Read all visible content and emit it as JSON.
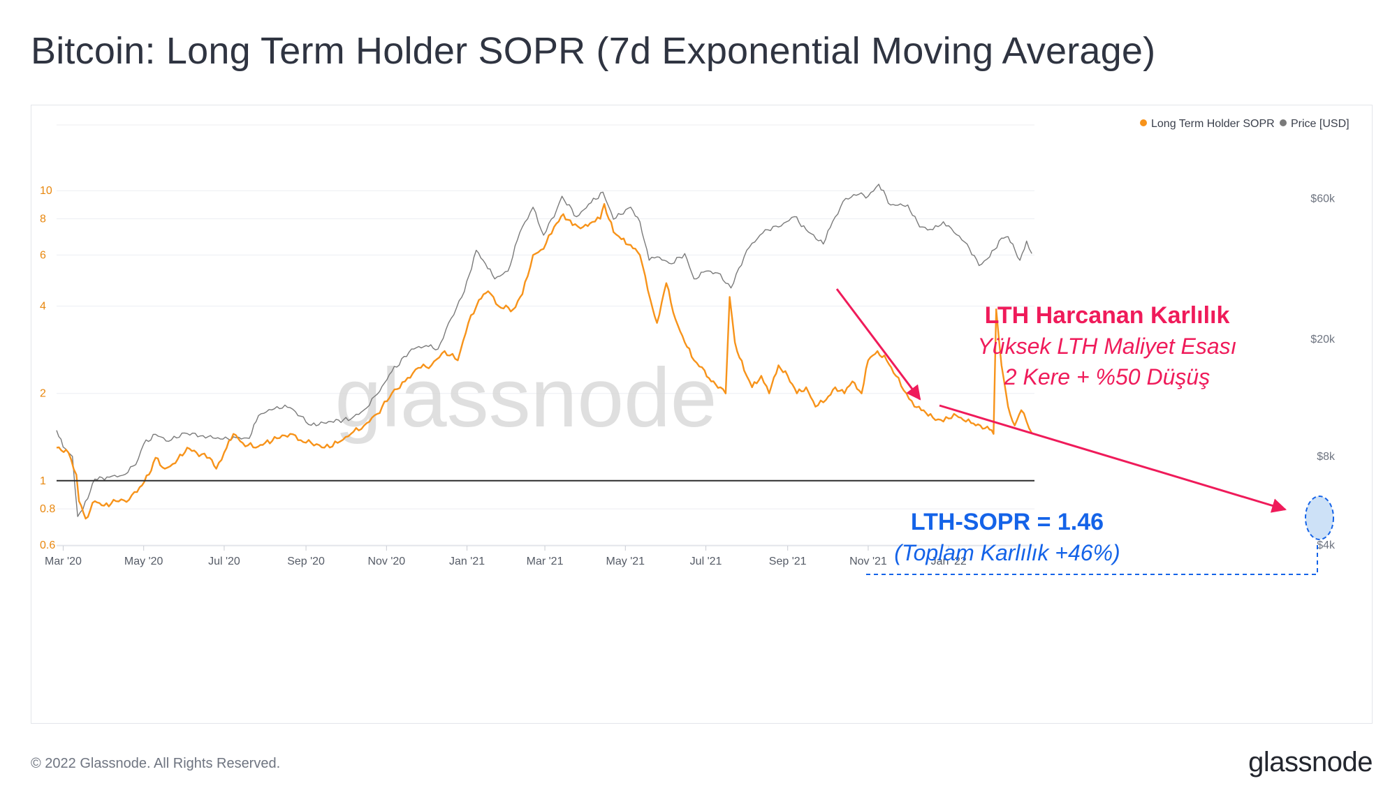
{
  "header": {
    "title": "Bitcoin: Long Term Holder SOPR (7d Exponential Moving Average)"
  },
  "footer": {
    "copyright": "© 2022 Glassnode. All Rights Reserved.",
    "logo": "glassnode"
  },
  "chart_data": {
    "type": "line",
    "watermark": "glassnode",
    "x_tick_labels": [
      "Mar '20",
      "May '20",
      "Jul '20",
      "Sep '20",
      "Nov '20",
      "Jan '21",
      "Mar '21",
      "May '21",
      "Jul '21",
      "Sep '21",
      "Nov '21",
      "Jan '22"
    ],
    "x_range": [
      "2020-02-25",
      "2022-03-07"
    ],
    "left_axis": {
      "scale": "log",
      "range": [
        0.6,
        11
      ],
      "tick_labels": [
        "0.6",
        "0.8",
        "1",
        "2",
        "4",
        "6",
        "8",
        "10"
      ],
      "color": "#e8870e"
    },
    "right_axis": {
      "scale": "log",
      "range": [
        4000,
        70000
      ],
      "tick_labels": [
        "$4k",
        "$8k",
        "$20k",
        "$60k"
      ],
      "color": "#6e7480"
    },
    "grid": true,
    "reference_line": {
      "axis": "left",
      "value": 1
    },
    "legend": {
      "position": "top-right",
      "entries": [
        {
          "name": "Long Term Holder SOPR",
          "color": "#f7931a"
        },
        {
          "name": "Price [USD]",
          "color": "#7a7a7a"
        }
      ]
    },
    "series": [
      {
        "name": "Long Term Holder SOPR",
        "axis": "left",
        "color": "#f7931a",
        "points": [
          [
            "2020-02-25",
            1.3
          ],
          [
            "2020-03-05",
            1.25
          ],
          [
            "2020-03-11",
            1.05
          ],
          [
            "2020-03-13",
            0.85
          ],
          [
            "2020-03-18",
            0.74
          ],
          [
            "2020-03-25",
            0.85
          ],
          [
            "2020-04-01",
            0.82
          ],
          [
            "2020-04-10",
            0.85
          ],
          [
            "2020-04-20",
            0.86
          ],
          [
            "2020-04-28",
            0.95
          ],
          [
            "2020-05-05",
            1.05
          ],
          [
            "2020-05-10",
            1.2
          ],
          [
            "2020-05-17",
            1.1
          ],
          [
            "2020-05-25",
            1.15
          ],
          [
            "2020-06-03",
            1.3
          ],
          [
            "2020-06-10",
            1.25
          ],
          [
            "2020-06-20",
            1.2
          ],
          [
            "2020-06-25",
            1.1
          ],
          [
            "2020-07-01",
            1.25
          ],
          [
            "2020-07-08",
            1.45
          ],
          [
            "2020-07-15",
            1.35
          ],
          [
            "2020-07-25",
            1.3
          ],
          [
            "2020-08-01",
            1.35
          ],
          [
            "2020-08-10",
            1.4
          ],
          [
            "2020-08-20",
            1.45
          ],
          [
            "2020-08-28",
            1.38
          ],
          [
            "2020-09-05",
            1.35
          ],
          [
            "2020-09-15",
            1.3
          ],
          [
            "2020-09-25",
            1.35
          ],
          [
            "2020-10-05",
            1.45
          ],
          [
            "2020-10-15",
            1.55
          ],
          [
            "2020-10-25",
            1.7
          ],
          [
            "2020-11-05",
            2.0
          ],
          [
            "2020-11-15",
            2.2
          ],
          [
            "2020-11-25",
            2.45
          ],
          [
            "2020-12-05",
            2.5
          ],
          [
            "2020-12-15",
            2.8
          ],
          [
            "2020-12-25",
            2.6
          ],
          [
            "2021-01-02",
            3.5
          ],
          [
            "2021-01-10",
            4.2
          ],
          [
            "2021-01-17",
            4.5
          ],
          [
            "2021-01-25",
            4.0
          ],
          [
            "2021-02-05",
            3.9
          ],
          [
            "2021-02-12",
            4.4
          ],
          [
            "2021-02-20",
            6.0
          ],
          [
            "2021-02-28",
            6.3
          ],
          [
            "2021-03-08",
            7.5
          ],
          [
            "2021-03-15",
            8.3
          ],
          [
            "2021-03-22",
            7.6
          ],
          [
            "2021-03-30",
            7.5
          ],
          [
            "2021-04-06",
            7.8
          ],
          [
            "2021-04-12",
            8.0
          ],
          [
            "2021-04-15",
            9.0
          ],
          [
            "2021-04-22",
            7.2
          ],
          [
            "2021-04-28",
            6.8
          ],
          [
            "2021-05-05",
            6.5
          ],
          [
            "2021-05-12",
            6.0
          ],
          [
            "2021-05-20",
            4.2
          ],
          [
            "2021-05-25",
            3.5
          ],
          [
            "2021-06-01",
            4.8
          ],
          [
            "2021-06-08",
            3.6
          ],
          [
            "2021-06-15",
            3.0
          ],
          [
            "2021-06-22",
            2.6
          ],
          [
            "2021-06-30",
            2.4
          ],
          [
            "2021-07-05",
            2.2
          ],
          [
            "2021-07-12",
            2.1
          ],
          [
            "2021-07-16",
            2.0
          ],
          [
            "2021-07-19",
            4.3
          ],
          [
            "2021-07-23",
            3.0
          ],
          [
            "2021-07-30",
            2.4
          ],
          [
            "2021-08-05",
            2.1
          ],
          [
            "2021-08-12",
            2.3
          ],
          [
            "2021-08-18",
            2.0
          ],
          [
            "2021-08-25",
            2.5
          ],
          [
            "2021-09-01",
            2.3
          ],
          [
            "2021-09-08",
            2.0
          ],
          [
            "2021-09-15",
            2.1
          ],
          [
            "2021-09-22",
            1.8
          ],
          [
            "2021-09-30",
            1.9
          ],
          [
            "2021-10-07",
            2.1
          ],
          [
            "2021-10-14",
            2.0
          ],
          [
            "2021-10-20",
            2.2
          ],
          [
            "2021-10-27",
            2.0
          ],
          [
            "2021-11-01",
            2.6
          ],
          [
            "2021-11-08",
            2.8
          ],
          [
            "2021-11-15",
            2.6
          ],
          [
            "2021-11-22",
            2.3
          ],
          [
            "2021-11-30",
            2.0
          ],
          [
            "2021-12-06",
            1.8
          ],
          [
            "2021-12-13",
            1.75
          ],
          [
            "2021-12-20",
            1.65
          ],
          [
            "2021-12-28",
            1.6
          ],
          [
            "2022-01-05",
            1.7
          ],
          [
            "2022-01-12",
            1.62
          ],
          [
            "2022-01-18",
            1.58
          ],
          [
            "2022-01-25",
            1.55
          ],
          [
            "2022-02-01",
            1.5
          ],
          [
            "2022-02-04",
            1.45
          ],
          [
            "2022-02-06",
            3.9
          ],
          [
            "2022-02-10",
            2.5
          ],
          [
            "2022-02-15",
            1.8
          ],
          [
            "2022-02-20",
            1.55
          ],
          [
            "2022-02-25",
            1.75
          ],
          [
            "2022-03-01",
            1.6
          ],
          [
            "2022-03-05",
            1.46
          ]
        ]
      },
      {
        "name": "Price [USD]",
        "axis": "right",
        "color": "#7a7a7a",
        "points": [
          [
            "2020-02-25",
            9800
          ],
          [
            "2020-03-01",
            8600
          ],
          [
            "2020-03-08",
            8000
          ],
          [
            "2020-03-12",
            5000
          ],
          [
            "2020-03-16",
            5300
          ],
          [
            "2020-03-25",
            6700
          ],
          [
            "2020-04-05",
            6800
          ],
          [
            "2020-04-15",
            6900
          ],
          [
            "2020-04-25",
            7500
          ],
          [
            "2020-05-01",
            8800
          ],
          [
            "2020-05-10",
            9500
          ],
          [
            "2020-05-20",
            9000
          ],
          [
            "2020-06-01",
            9600
          ],
          [
            "2020-06-15",
            9400
          ],
          [
            "2020-06-30",
            9150
          ],
          [
            "2020-07-10",
            9250
          ],
          [
            "2020-07-20",
            9200
          ],
          [
            "2020-07-27",
            11000
          ],
          [
            "2020-08-10",
            11800
          ],
          [
            "2020-08-20",
            11700
          ],
          [
            "2020-09-05",
            10200
          ],
          [
            "2020-09-20",
            10500
          ],
          [
            "2020-10-05",
            10700
          ],
          [
            "2020-10-15",
            11500
          ],
          [
            "2020-10-25",
            13000
          ],
          [
            "2020-11-05",
            15500
          ],
          [
            "2020-11-20",
            18500
          ],
          [
            "2020-12-01",
            19000
          ],
          [
            "2020-12-10",
            18500
          ],
          [
            "2020-12-20",
            23500
          ],
          [
            "2020-12-30",
            29000
          ],
          [
            "2021-01-08",
            40000
          ],
          [
            "2021-01-15",
            36000
          ],
          [
            "2021-01-22",
            32000
          ],
          [
            "2021-02-01",
            34000
          ],
          [
            "2021-02-10",
            46000
          ],
          [
            "2021-02-20",
            56000
          ],
          [
            "2021-02-28",
            45000
          ],
          [
            "2021-03-10",
            55000
          ],
          [
            "2021-03-14",
            61000
          ],
          [
            "2021-03-25",
            52000
          ],
          [
            "2021-04-05",
            58000
          ],
          [
            "2021-04-14",
            63000
          ],
          [
            "2021-04-22",
            51000
          ],
          [
            "2021-05-05",
            56000
          ],
          [
            "2021-05-12",
            50000
          ],
          [
            "2021-05-19",
            37000
          ],
          [
            "2021-05-25",
            38000
          ],
          [
            "2021-06-05",
            36000
          ],
          [
            "2021-06-15",
            39000
          ],
          [
            "2021-06-22",
            32000
          ],
          [
            "2021-07-01",
            34000
          ],
          [
            "2021-07-10",
            33500
          ],
          [
            "2021-07-20",
            29800
          ],
          [
            "2021-08-01",
            40000
          ],
          [
            "2021-08-15",
            47000
          ],
          [
            "2021-08-25",
            48000
          ],
          [
            "2021-09-06",
            52000
          ],
          [
            "2021-09-15",
            47000
          ],
          [
            "2021-09-28",
            42000
          ],
          [
            "2021-10-05",
            50000
          ],
          [
            "2021-10-15",
            60000
          ],
          [
            "2021-10-25",
            62000
          ],
          [
            "2021-11-01",
            61000
          ],
          [
            "2021-11-09",
            67000
          ],
          [
            "2021-11-18",
            57000
          ],
          [
            "2021-12-01",
            57000
          ],
          [
            "2021-12-10",
            48000
          ],
          [
            "2021-12-20",
            47000
          ],
          [
            "2021-12-28",
            50000
          ],
          [
            "2022-01-05",
            46000
          ],
          [
            "2022-01-15",
            42000
          ],
          [
            "2022-01-24",
            35500
          ],
          [
            "2022-02-01",
            38000
          ],
          [
            "2022-02-10",
            44000
          ],
          [
            "2022-02-15",
            44500
          ],
          [
            "2022-02-24",
            37000
          ],
          [
            "2022-03-01",
            43000
          ],
          [
            "2022-03-05",
            39000
          ]
        ]
      }
    ],
    "annotations": {
      "lth_title": "LTH Harcanan Karlılık",
      "lth_line1": "Yüksek LTH Maliyet Esası",
      "lth_line2": "2 Kere + %50 Düşüş",
      "sopr_value": "LTH-SOPR = 1.46",
      "sopr_note": "(Toplam Karlılık +46%)",
      "accent_color": "#ef1b5a",
      "value_color": "#1463e8"
    }
  }
}
